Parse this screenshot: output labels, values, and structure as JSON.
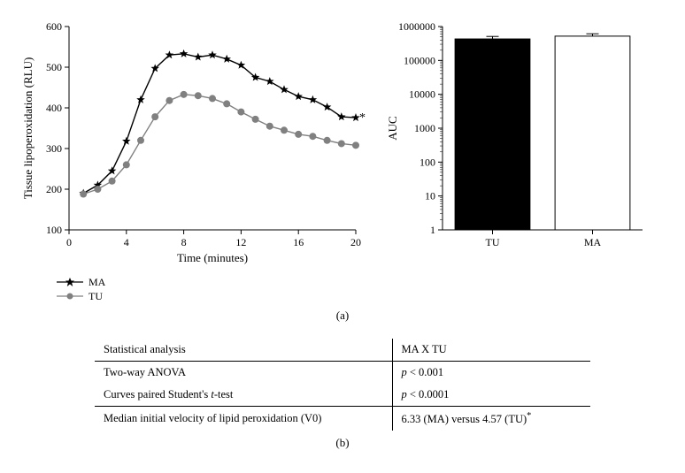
{
  "line_chart": {
    "type": "line",
    "x_label": "Time (minutes)",
    "y_label": "Tissue lipoperoxidation (RLU)",
    "xlim": [
      0,
      20
    ],
    "ylim": [
      100,
      600
    ],
    "xtick_step": 4,
    "ytick_step": 100,
    "xticks": [
      0,
      4,
      8,
      12,
      16,
      20
    ],
    "yticks": [
      100,
      200,
      300,
      400,
      500,
      600
    ],
    "background_color": "#ffffff",
    "axis_color": "#000000",
    "tick_fontsize": 12,
    "label_fontsize": 13,
    "annotation": "*",
    "series": [
      {
        "name": "MA",
        "color": "#000000",
        "marker": "star",
        "marker_size": 5,
        "line_width": 1.4,
        "x": [
          1,
          2,
          3,
          4,
          5,
          6,
          7,
          8,
          9,
          10,
          11,
          12,
          13,
          14,
          15,
          16,
          17,
          18,
          19,
          20
        ],
        "y": [
          190,
          210,
          245,
          318,
          420,
          497,
          530,
          533,
          525,
          530,
          520,
          505,
          475,
          465,
          445,
          428,
          420,
          402,
          378,
          376
        ]
      },
      {
        "name": "TU",
        "color": "#808080",
        "marker": "circle",
        "marker_size": 4,
        "line_width": 1.4,
        "x": [
          1,
          2,
          3,
          4,
          5,
          6,
          7,
          8,
          9,
          10,
          11,
          12,
          13,
          14,
          15,
          16,
          17,
          18,
          19,
          20
        ],
        "y": [
          188,
          200,
          220,
          260,
          320,
          378,
          418,
          433,
          430,
          423,
          410,
          390,
          372,
          355,
          345,
          335,
          330,
          320,
          312,
          308
        ]
      }
    ]
  },
  "legend": {
    "items": [
      {
        "name": "MA",
        "color": "#000000",
        "marker": "star"
      },
      {
        "name": "TU",
        "color": "#808080",
        "marker": "circle"
      }
    ]
  },
  "bar_chart": {
    "type": "bar",
    "y_label": "AUC",
    "y_scale": "log",
    "ylim": [
      1,
      1000000
    ],
    "yticks": [
      1,
      10,
      100,
      1000,
      10000,
      100000,
      1000000
    ],
    "background_color": "#ffffff",
    "axis_color": "#000000",
    "label_fontsize": 13,
    "tick_fontsize": 12,
    "bar_width": 0.75,
    "bars": [
      {
        "label": "TU",
        "value": 430000,
        "error": 80000,
        "fill": "#000000",
        "stroke": "#000000"
      },
      {
        "label": "MA",
        "value": 520000,
        "error": 90000,
        "fill": "#ffffff",
        "stroke": "#000000"
      }
    ]
  },
  "panel_label_a": "(a)",
  "panel_label_b": "(b)",
  "stats": {
    "header_left": "Statistical analysis",
    "header_right": "MA X TU",
    "rows": [
      {
        "left": "Two-way ANOVA",
        "right_prefix": "p",
        "right_rest": " < 0.001"
      },
      {
        "left_prefix": "Curves paired Student's ",
        "left_italic": "t",
        "left_suffix": "-test",
        "right_prefix": "p",
        "right_rest": " < 0.0001"
      },
      {
        "left": "Median initial velocity of lipid peroxidation (V0)",
        "right_plain": "6.33 (MA) versus 4.57 (TU)",
        "right_sup": "*"
      }
    ]
  }
}
